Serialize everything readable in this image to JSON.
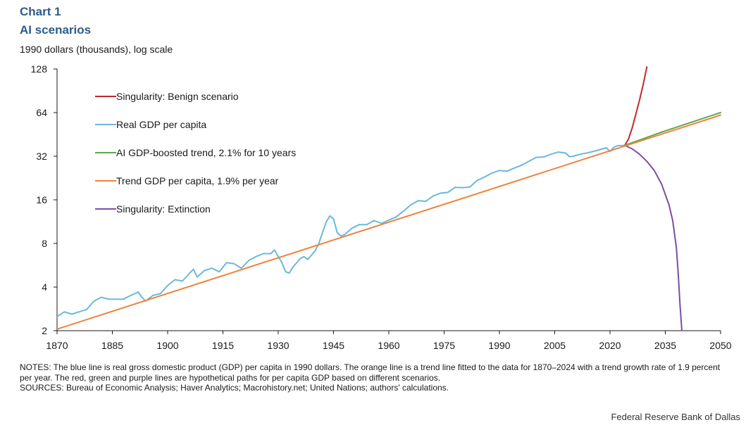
{
  "header": {
    "chart_label": "Chart 1",
    "title": "AI scenarios",
    "units": "1990 dollars (thousands),  log scale"
  },
  "chart_data": {
    "type": "line",
    "title": "AI scenarios",
    "ylabel": "1990 dollars (thousands),  log scale",
    "xlabel": "",
    "y_scale": "log2",
    "xlim": [
      1870,
      2050
    ],
    "ylim": [
      2,
      128
    ],
    "x_ticks": [
      1870,
      1885,
      1900,
      1915,
      1930,
      1945,
      1960,
      1975,
      1990,
      2005,
      2020,
      2035,
      2050
    ],
    "y_ticks": [
      2,
      4,
      8,
      16,
      32,
      64,
      128
    ],
    "legend_position": "top-left inside plot",
    "series": [
      {
        "name": "Singularity: Benign scenario",
        "color": "#c0282d",
        "x": [
          2024,
          2025,
          2026,
          2027,
          2028,
          2029,
          2030
        ],
        "values": [
          38,
          42,
          50,
          62,
          78,
          100,
          132
        ]
      },
      {
        "name": "Real GDP per capita",
        "color": "#6bb8dc",
        "x": [
          1870,
          1872,
          1874,
          1876,
          1878,
          1880,
          1882,
          1884,
          1886,
          1888,
          1890,
          1892,
          1893,
          1894,
          1896,
          1898,
          1900,
          1902,
          1904,
          1906,
          1907,
          1908,
          1910,
          1912,
          1914,
          1916,
          1918,
          1920,
          1922,
          1924,
          1926,
          1928,
          1929,
          1930,
          1931,
          1932,
          1933,
          1934,
          1936,
          1937,
          1938,
          1940,
          1941,
          1942,
          1943,
          1944,
          1945,
          1946,
          1947,
          1948,
          1950,
          1952,
          1954,
          1956,
          1958,
          1960,
          1962,
          1964,
          1966,
          1968,
          1970,
          1972,
          1974,
          1976,
          1978,
          1980,
          1982,
          1984,
          1986,
          1988,
          1990,
          1992,
          1994,
          1996,
          1998,
          2000,
          2002,
          2004,
          2006,
          2008,
          2009,
          2010,
          2012,
          2014,
          2016,
          2018,
          2019,
          2020,
          2021,
          2022,
          2024
        ],
        "values": [
          2.5,
          2.7,
          2.6,
          2.7,
          2.8,
          3.2,
          3.4,
          3.3,
          3.3,
          3.3,
          3.5,
          3.7,
          3.4,
          3.2,
          3.5,
          3.6,
          4.1,
          4.5,
          4.4,
          5.0,
          5.3,
          4.7,
          5.2,
          5.4,
          5.1,
          5.9,
          5.8,
          5.4,
          6.1,
          6.5,
          6.8,
          6.8,
          7.2,
          6.5,
          5.9,
          5.1,
          5.0,
          5.5,
          6.3,
          6.5,
          6.2,
          7.1,
          8.0,
          9.5,
          11.2,
          12.4,
          11.8,
          9.5,
          9.0,
          9.2,
          10.2,
          10.8,
          10.8,
          11.5,
          11.0,
          11.6,
          12.2,
          13.4,
          14.8,
          15.8,
          15.6,
          17.0,
          17.8,
          18.0,
          19.5,
          19.4,
          19.6,
          21.8,
          23.0,
          24.5,
          25.5,
          25.2,
          26.5,
          27.7,
          29.5,
          31.4,
          31.6,
          33.0,
          34.2,
          33.6,
          31.8,
          32.0,
          33.0,
          33.8,
          34.8,
          36.0,
          36.6,
          34.5,
          36.8,
          37.8,
          38.0
        ]
      },
      {
        "name": "AI GDP-boosted trend, 2.1% for 10 years",
        "color": "#59a84b",
        "x": [
          2024,
          2034,
          2050
        ],
        "values": [
          38,
          46.9,
          64
        ]
      },
      {
        "name": "Trend GDP per capita, 1.9% per year",
        "color": "#f0823c",
        "x": [
          1870,
          2050
        ],
        "values": [
          2.05,
          61.5
        ]
      },
      {
        "name": "Singularity: Extinction",
        "color": "#7b4ea3",
        "x": [
          2024,
          2026,
          2028,
          2030,
          2032,
          2034,
          2036,
          2037,
          2038,
          2038.5,
          2039,
          2039.5,
          2040
        ],
        "values": [
          38,
          36,
          33,
          29.5,
          25.5,
          20.5,
          14.8,
          11.5,
          7.5,
          5.0,
          3.0,
          2.0,
          1.9
        ]
      }
    ]
  },
  "notes": {
    "notes_text": "NOTES: The blue line is real gross domestic product (GDP) per capita in 1990 dollars. The orange line is a trend line fitted to the data for 1870–2024 with a trend growth rate of 1.9 percent per year. The red, green and purple lines are hypothetical paths for per capita GDP based on different scenarios.",
    "sources_text": "SOURCES: Bureau of Economic Analysis; Haver Analytics; Macrohistory.net; United Nations; authors' calculations."
  },
  "footer": {
    "credit": "Federal Reserve Bank of Dallas"
  }
}
